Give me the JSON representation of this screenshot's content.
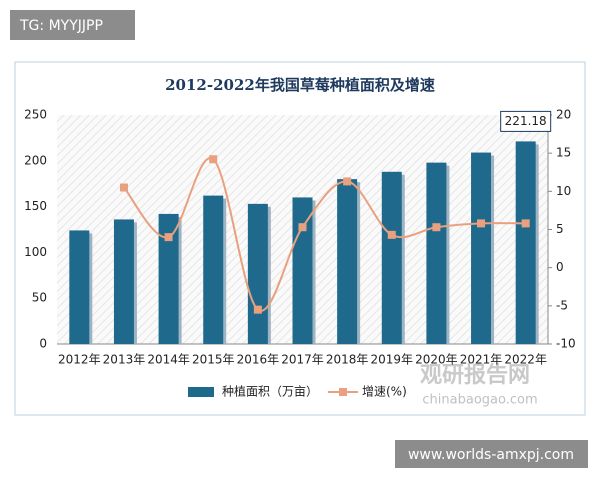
{
  "chart_data": {
    "type": "bar-line",
    "title": "2012-2022年我国草莓种植面积及增速",
    "categories": [
      "2012年",
      "2013年",
      "2014年",
      "2015年",
      "2016年",
      "2017年",
      "2018年",
      "2019年",
      "2020年",
      "2021年",
      "2022年"
    ],
    "series": [
      {
        "name": "种植面积（万亩）",
        "type": "bar",
        "color": "#1f6a8c",
        "values": [
          124,
          136,
          142,
          162,
          153,
          160,
          180,
          188,
          198,
          209,
          221.18
        ],
        "value_labels": [
          null,
          null,
          null,
          null,
          null,
          null,
          null,
          null,
          null,
          null,
          "221.18"
        ]
      },
      {
        "name": "增速(%)",
        "type": "line",
        "axis": "y2",
        "color": "#e9a07f",
        "values": [
          null,
          10.5,
          4.0,
          14.2,
          -5.5,
          5.3,
          11.3,
          4.3,
          5.3,
          5.8,
          5.8
        ]
      }
    ],
    "ylim": [
      0,
      250
    ],
    "yticks": [
      0,
      50,
      100,
      150,
      200,
      250
    ],
    "y2lim": [
      -10,
      20
    ],
    "y2ticks": [
      -10,
      -5,
      0,
      5,
      10,
      15,
      20
    ],
    "grid": false,
    "legend": "bottom"
  },
  "watermarks": [
    "TG: MYYJJPP",
    "观研报告网",
    "chinabaogao.com",
    "www.worlds-amxpj.com"
  ]
}
